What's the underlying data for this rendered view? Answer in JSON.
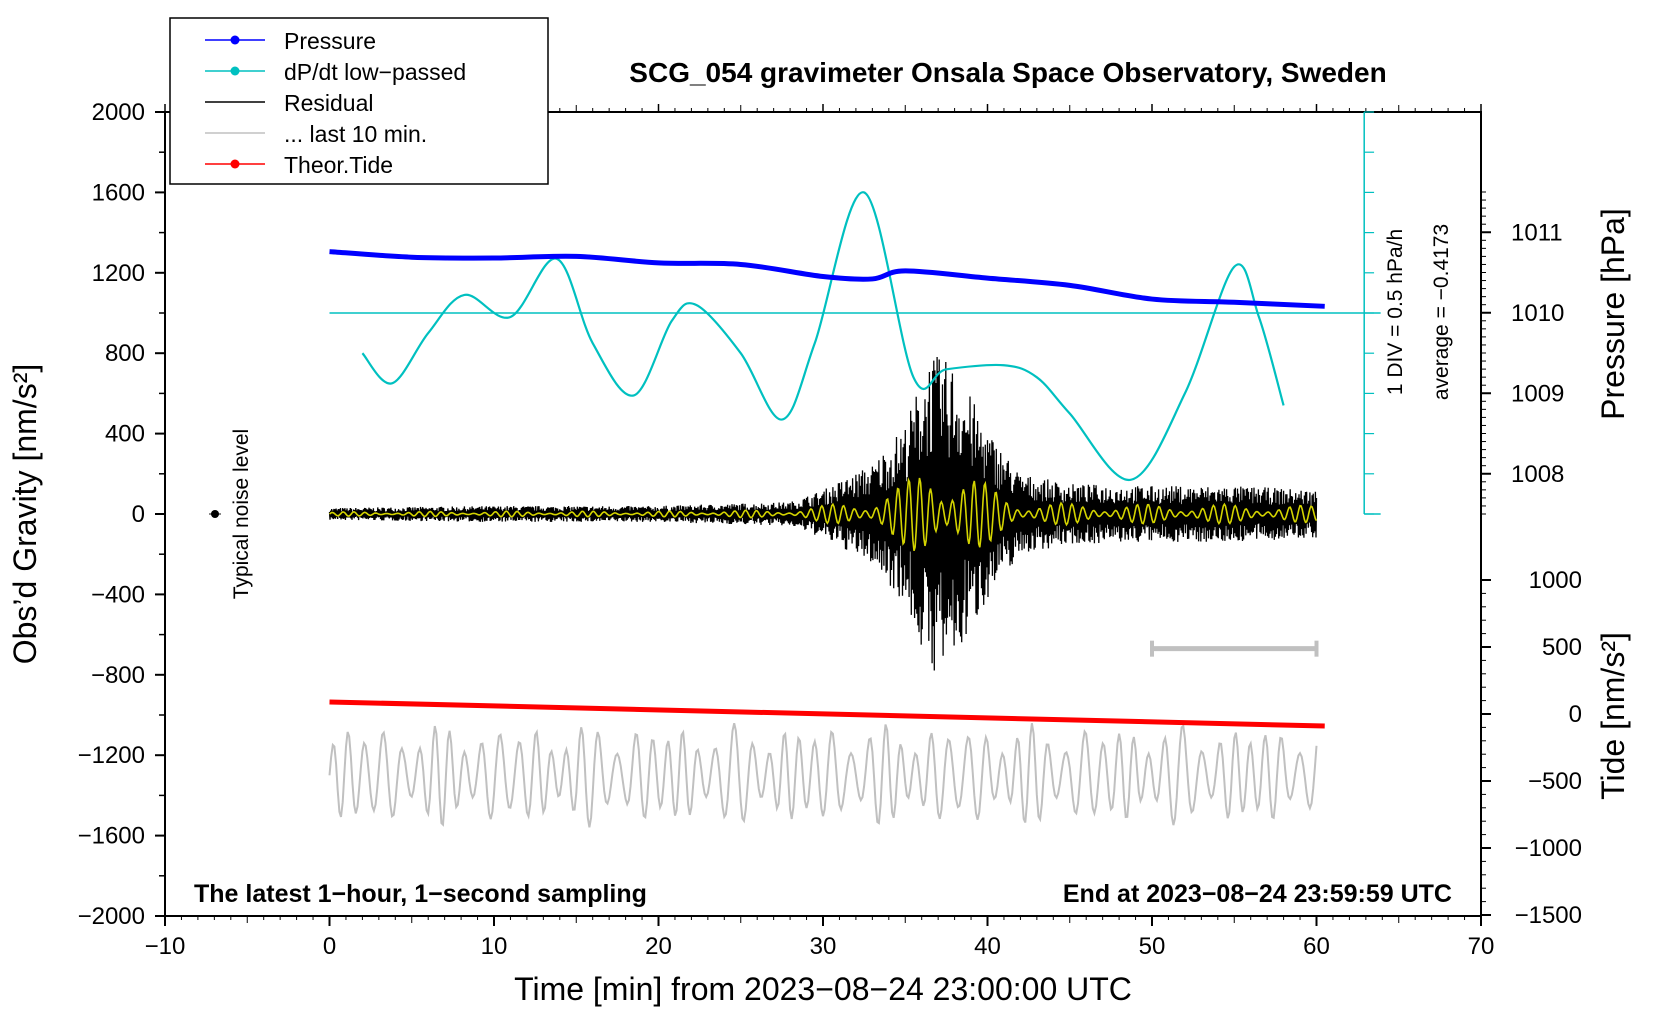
{
  "chart_data": {
    "type": "line",
    "title": "SCG_054 gravimeter Onsala Space Observatory, Sweden",
    "xlabel": "Time [min] from 2023−08−24 23:00:00 UTC",
    "ylabel_left": "Obs’d Gravity [nm/s²]",
    "ylabel_right_top": "Pressure [hPa]",
    "ylabel_right_bottom": "Tide [nm/s²]",
    "xlim": [
      -10,
      70
    ],
    "ylim_left": [
      -2000,
      2000
    ],
    "x_ticks": [
      "−10",
      "0",
      "10",
      "20",
      "30",
      "40",
      "50",
      "60",
      "70"
    ],
    "y_ticks_left": [
      "2000",
      "1600",
      "1200",
      "800",
      "400",
      "0",
      "−400",
      "−800",
      "−1200",
      "−1600",
      "−2000"
    ],
    "pressure_ticks": [
      "1011",
      "1010",
      "1009",
      "1008"
    ],
    "tide_ticks": [
      "1000",
      "500",
      "0",
      "−500",
      "−1000",
      "−1500"
    ],
    "legend": [
      {
        "label": "Pressure",
        "color": "#0000ff",
        "marker": true
      },
      {
        "label": "dP/dt low−passed",
        "color": "#00c0c0",
        "marker": true
      },
      {
        "label": "Residual",
        "color": "#000000",
        "marker": false
      },
      {
        "label": "... last 10 min.",
        "color": "#c0c0c0",
        "marker": false
      },
      {
        "label": "Theor.Tide",
        "color": "#ff0000",
        "marker": true
      }
    ],
    "annotations": {
      "bottom_left": "The latest 1−hour, 1−second sampling",
      "bottom_right": "End at 2023−08−24 23:59:59 UTC",
      "noise": "Typical noise level",
      "dpdt_scale": "1 DIV = 0.5 hPa/h",
      "dpdt_average": "average = −0.4173"
    },
    "pressure": {
      "x": [
        0,
        5,
        10,
        15,
        20,
        25,
        30,
        33,
        35,
        40,
        45,
        50,
        55,
        60.5
      ],
      "y": [
        1010.76,
        1010.69,
        1010.68,
        1010.7,
        1010.62,
        1010.6,
        1010.45,
        1010.42,
        1010.52,
        1010.43,
        1010.34,
        1010.17,
        1010.13,
        1010.08
      ]
    },
    "dpdt_lowpassed": {
      "x": [
        2,
        3.8,
        6,
        8.2,
        11,
        13.8,
        16,
        18.5,
        20.8,
        22.3,
        25,
        27.5,
        29.5,
        32.5,
        35.5,
        37.5,
        41,
        43,
        45,
        48.7,
        52,
        55,
        56.5,
        58
      ],
      "y": [
        800,
        650,
        900,
        1090,
        980,
        1270,
        850,
        590,
        960,
        1040,
        800,
        470,
        850,
        1600,
        680,
        720,
        740,
        680,
        500,
        170,
        600,
        1230,
        980,
        540
      ]
    },
    "residual_envelope": {
      "x": [
        0,
        10,
        20,
        28,
        30,
        33,
        35,
        36.5,
        38,
        40,
        42,
        45,
        50,
        55,
        60
      ],
      "y": [
        30,
        40,
        40,
        60,
        120,
        250,
        450,
        800,
        750,
        420,
        200,
        150,
        140,
        140,
        120
      ]
    },
    "tide": {
      "x": [
        0,
        60.5
      ],
      "y": [
        90,
        -90
      ]
    },
    "last_10min_bar": [
      50,
      60
    ]
  }
}
